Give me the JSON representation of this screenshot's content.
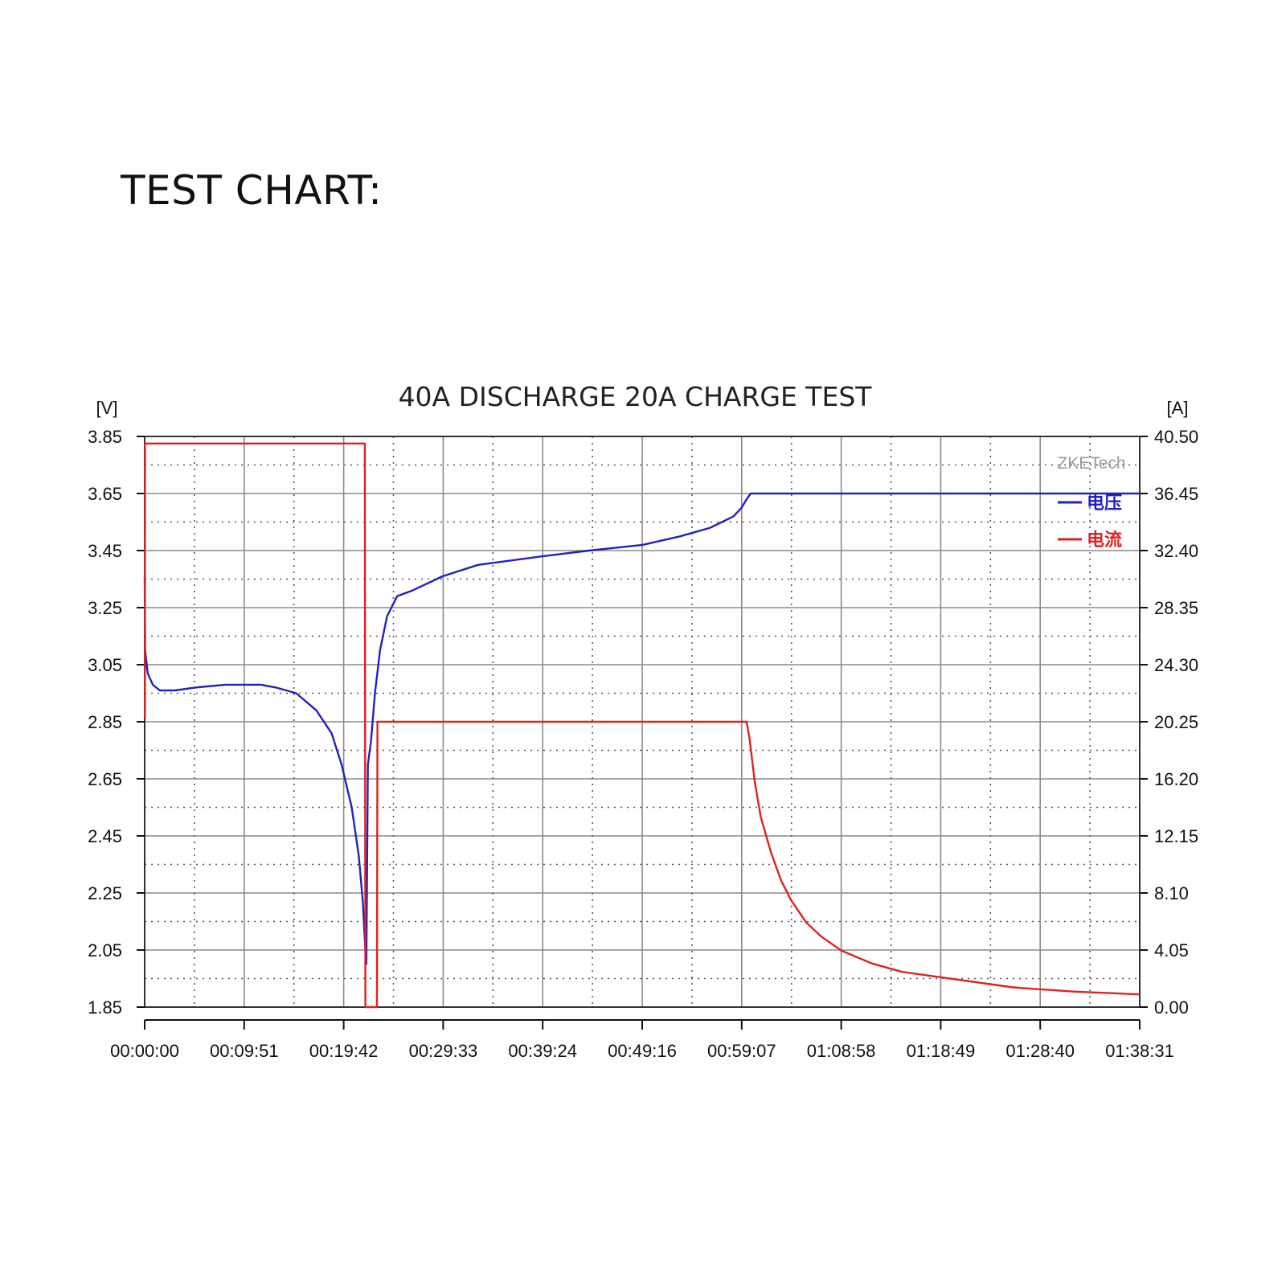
{
  "heading": "TEST CHART:",
  "chart_data": {
    "type": "line",
    "title": "40A DISCHARGE 20A CHARGE TEST",
    "watermark": "ZKETech",
    "y_left_unit": "[V]",
    "y_right_unit": "[A]",
    "y_left_ticks": [
      "3.85",
      "3.65",
      "3.45",
      "3.25",
      "3.05",
      "2.85",
      "2.65",
      "2.45",
      "2.25",
      "2.05",
      "1.85"
    ],
    "y_right_ticks": [
      "40.50",
      "36.45",
      "32.40",
      "28.35",
      "24.30",
      "20.25",
      "16.20",
      "12.15",
      "8.10",
      "4.05",
      "0.00"
    ],
    "x_ticks": [
      "00:00:00",
      "00:09:51",
      "00:19:42",
      "00:29:33",
      "00:39:24",
      "00:49:16",
      "00:59:07",
      "01:08:58",
      "01:18:49",
      "01:28:40",
      "01:38:31"
    ],
    "ylim_left": [
      1.85,
      3.85
    ],
    "ylim_right": [
      0,
      40.5
    ],
    "xlim_min": [
      0,
      98.52
    ],
    "grid": true,
    "legend_position": "top-right",
    "series": [
      {
        "name": "电压",
        "axis": "left",
        "color": "#2222bb",
        "x_min": [
          0,
          0.05,
          0.3,
          0.8,
          1.5,
          3,
          5,
          8,
          10,
          11.5,
          13,
          15,
          17,
          18.5,
          19.5,
          20.5,
          21.2,
          21.6,
          21.85,
          21.95,
          22.1,
          22.4,
          22.8,
          23.3,
          24,
          25,
          26.5,
          29.5,
          33,
          39.4,
          44,
          49.3,
          53,
          56,
          58.3,
          59.1,
          59.6,
          60,
          98.5
        ],
        "y": [
          3.36,
          3.1,
          3.02,
          2.98,
          2.96,
          2.96,
          2.97,
          2.98,
          2.98,
          2.98,
          2.97,
          2.95,
          2.89,
          2.81,
          2.7,
          2.55,
          2.38,
          2.22,
          2.05,
          2.0,
          2.7,
          2.78,
          2.95,
          3.1,
          3.22,
          3.29,
          3.31,
          3.36,
          3.4,
          3.43,
          3.45,
          3.47,
          3.5,
          3.53,
          3.57,
          3.6,
          3.63,
          3.65,
          3.65
        ]
      },
      {
        "name": "电流",
        "axis": "right",
        "color": "#dd2222",
        "x_min": [
          0,
          0.02,
          0.03,
          21.8,
          21.85,
          23.0,
          23.05,
          59.6,
          59.9,
          60.4,
          61,
          62,
          63,
          64,
          65.5,
          67,
          69,
          72,
          75,
          80,
          86,
          92,
          98.5
        ],
        "y": [
          20.5,
          20.5,
          40.0,
          40.0,
          0,
          0,
          20.25,
          20.25,
          19.0,
          16.0,
          13.5,
          11.0,
          9.0,
          7.6,
          6.0,
          5.0,
          4.0,
          3.1,
          2.5,
          2.0,
          1.4,
          1.1,
          0.9
        ]
      }
    ]
  }
}
